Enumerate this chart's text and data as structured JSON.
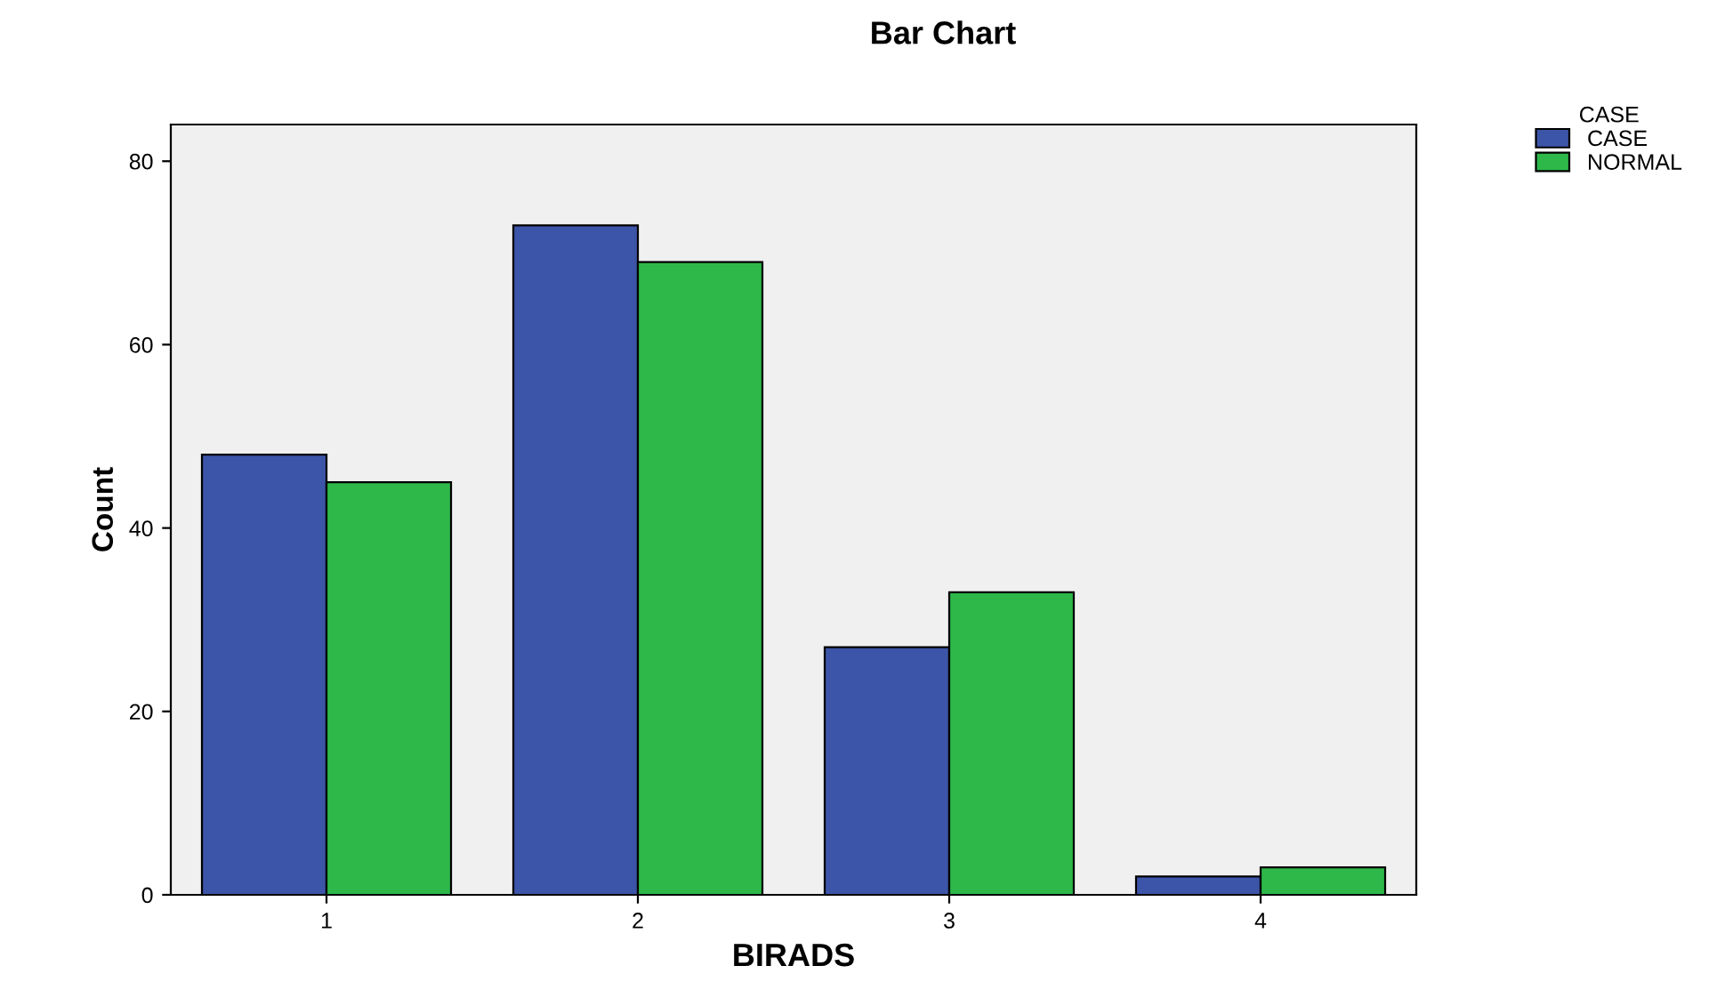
{
  "chart_data": {
    "type": "bar",
    "title": "Bar Chart",
    "xlabel": "BIRADS",
    "ylabel": "Count",
    "legend_title": "CASE",
    "categories": [
      "1",
      "2",
      "3",
      "4"
    ],
    "series": [
      {
        "name": "CASE",
        "color": "#3d55a8",
        "values": [
          48,
          73,
          27,
          2
        ]
      },
      {
        "name": "NORMAL",
        "color": "#2eb84a",
        "values": [
          45,
          69,
          33,
          3
        ]
      }
    ],
    "ylim": [
      0,
      84
    ],
    "yticks": [
      0,
      20,
      40,
      60,
      80
    ],
    "grid": false,
    "legend": "top right"
  }
}
